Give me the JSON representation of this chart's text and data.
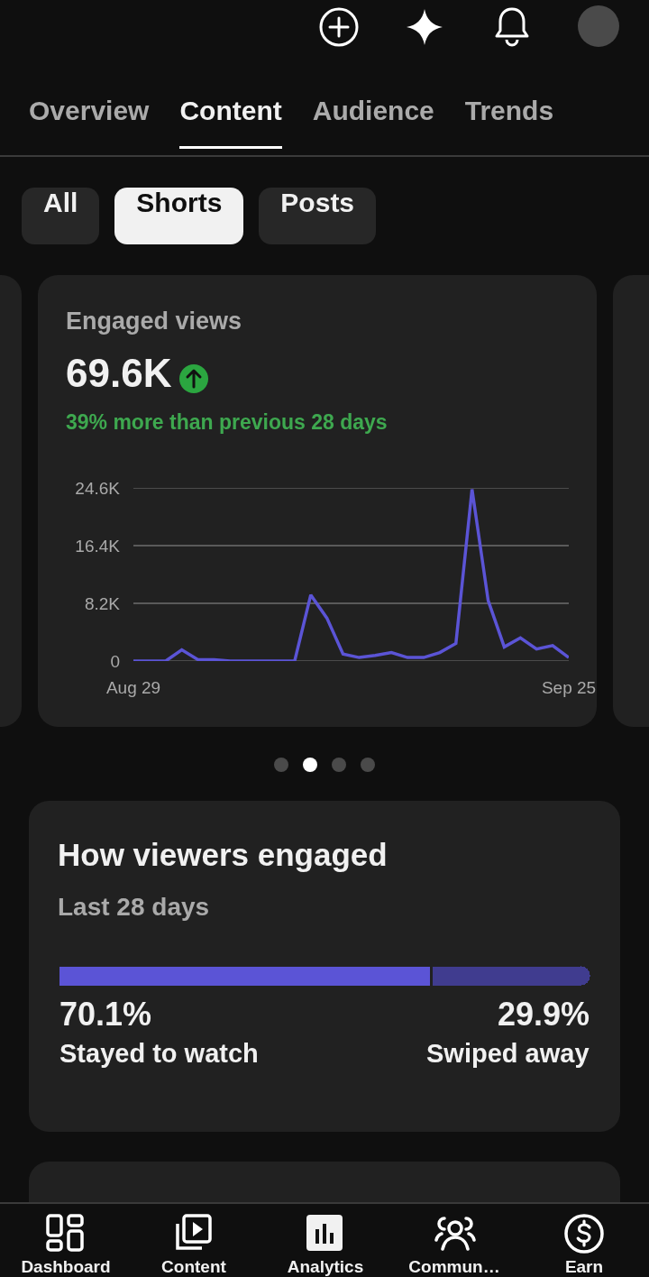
{
  "chart_data": [
    {
      "type": "other",
      "annotations": [
        "Overview",
        "Content",
        "Audience",
        "Trends",
        "All",
        "Shorts",
        "Posts"
      ]
    },
    {
      "type": "line",
      "title": "Engaged views",
      "subtitle": "69.6K",
      "annotations": [
        "39% more than previous 28 days"
      ],
      "x": [
        "--08-29",
        "--08-30",
        "--08-31",
        "--09-01",
        "--09-02",
        "--09-03",
        "--09-04",
        "--09-05",
        "--09-06",
        "--09-07",
        "--09-08",
        "--09-09",
        "--09-10",
        "--09-11",
        "--09-12",
        "--09-13",
        "--09-14",
        "--09-15",
        "--09-16",
        "--09-17",
        "--09-18",
        "--09-19",
        "--09-20",
        "--09-21",
        "--09-22",
        "--09-23",
        "--09-24",
        "--09-25"
      ],
      "series": [
        {
          "color": "#5b54d6",
          "values": [
            0,
            0,
            0,
            1600,
            200,
            200,
            0,
            0,
            0,
            0,
            0,
            9400,
            6100,
            1000,
            500,
            800,
            1200,
            500,
            500,
            1200,
            2500,
            24400,
            8600,
            2000,
            3300,
            1700,
            2200,
            500
          ]
        }
      ],
      "xlim": [
        "--08-29",
        "--09-25"
      ],
      "xticks": [
        {
          "value": "--08-29",
          "label": "Aug 29"
        },
        {
          "value": "--09-25",
          "label": "Sep 25"
        }
      ],
      "ylim": [
        0,
        24600
      ],
      "yticks": [
        0,
        {
          "value": 8200,
          "label": "8.2K"
        },
        {
          "value": 16400,
          "label": "16.4K"
        },
        {
          "value": 24600,
          "label": "24.6K"
        }
      ],
      "grid": "y",
      "marker": "none"
    },
    {
      "type": "bar",
      "title": "How viewers engaged",
      "subtitle": "Last 28 days",
      "categories": [
        null
      ],
      "orientation": "horizontal",
      "stacked": true,
      "series": [
        {
          "name": "Stayed to watch",
          "color": "#5b54d6",
          "values": [
            70.1
          ],
          "value_labels": [
            "70.1%"
          ]
        },
        {
          "name": "Swiped away",
          "color": "#403c8f",
          "values": [
            29.9
          ],
          "value_labels": [
            "29.9%"
          ]
        }
      ],
      "legend": false
    },
    {
      "type": "other",
      "annotations": [
        "Dashboard",
        "Content",
        "Analytics",
        "Commun…",
        "Earn"
      ]
    }
  ]
}
